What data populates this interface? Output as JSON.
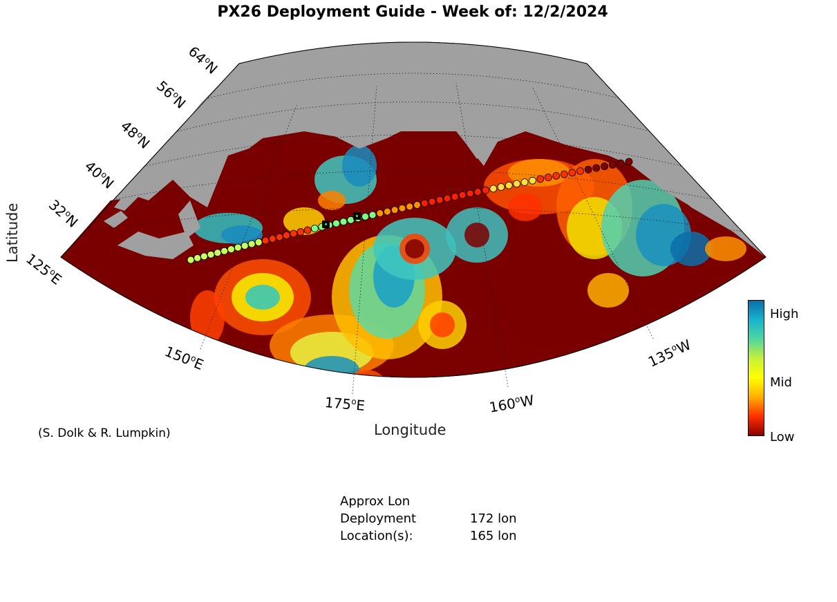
{
  "title": "PX26 Deployment Guide - Week of: 12/2/2024",
  "map": {
    "latitude_labels": [
      "64",
      "56",
      "48",
      "40",
      "32"
    ],
    "longitude_labels": [
      "125",
      "150",
      "175",
      "160",
      "135"
    ],
    "lat_suffix": "N",
    "lon_suffixes": {
      "125": "E",
      "150": "E",
      "175": "E",
      "160": "W",
      "135": "W"
    },
    "degree_symbol": "o",
    "xlabel": "Longitude",
    "ylabel": "Latitude",
    "land_color": "#a0a0a0",
    "low_color": "#800000"
  },
  "colorbar": {
    "high_label": "High",
    "mid_label": "Mid",
    "low_label": "Low",
    "colors": [
      "#0b6ea8",
      "#18b4d0",
      "#4fd6a0",
      "#c8f038",
      "#ffff00",
      "#ffb000",
      "#ff3000",
      "#8a0000"
    ]
  },
  "credit": "(S. Dolk & R. Lumpkin)",
  "deployment_info": {
    "header": "Approx Lon",
    "line2_label": "Deployment",
    "line3_label": "Location(s):",
    "values": [
      "172 lon",
      "165 lon"
    ]
  }
}
